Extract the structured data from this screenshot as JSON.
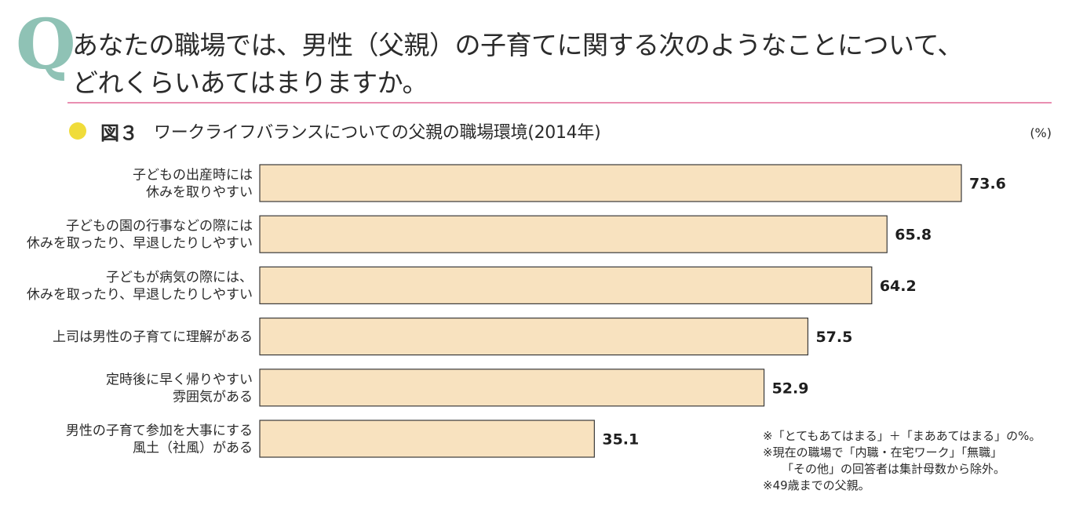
{
  "header": {
    "q_mark": "Q",
    "question_line1": "あなたの職場では、男性（父親）の子育てに関する次のようなことについて、",
    "question_line2": "どれくらいあてはまりますか。"
  },
  "figure": {
    "label": "図３",
    "title": "ワークライフバランスについての父親の職場環境(2014年)",
    "unit": "(%)"
  },
  "colors": {
    "bar_fill": "#f8e2bf",
    "bar_stroke": "#3a3a3a",
    "dot": "#f0dc3a",
    "divider": "#e98fb1",
    "q_mark": "#8fc2b5"
  },
  "chart_data": {
    "type": "bar",
    "orientation": "horizontal",
    "categories": [
      [
        "子どもの出産時には",
        "休みを取りやすい"
      ],
      [
        "子どもの園の行事などの際には",
        "休みを取ったり、早退したりしやすい"
      ],
      [
        "子どもが病気の際には、",
        "休みを取ったり、早退したりしやすい"
      ],
      [
        "上司は男性の子育てに理解がある"
      ],
      [
        "定時後に早く帰りやすい",
        "雰囲気がある"
      ],
      [
        "男性の子育て参加を大事にする",
        "風土（社風）がある"
      ]
    ],
    "values": [
      73.6,
      65.8,
      64.2,
      57.5,
      52.9,
      35.1
    ],
    "value_labels": [
      "73.6",
      "65.8",
      "64.2",
      "57.5",
      "52.9",
      "35.1"
    ],
    "xlim": [
      0,
      73.6
    ],
    "grid": false
  },
  "notes": [
    "※「とてもあてはまる」＋「まああてはまる」の%。",
    "※現在の職場で「内職・在宅ワーク」「無職」",
    "「その他」の回答者は集計母数から除外。",
    "※49歳までの父親。"
  ]
}
